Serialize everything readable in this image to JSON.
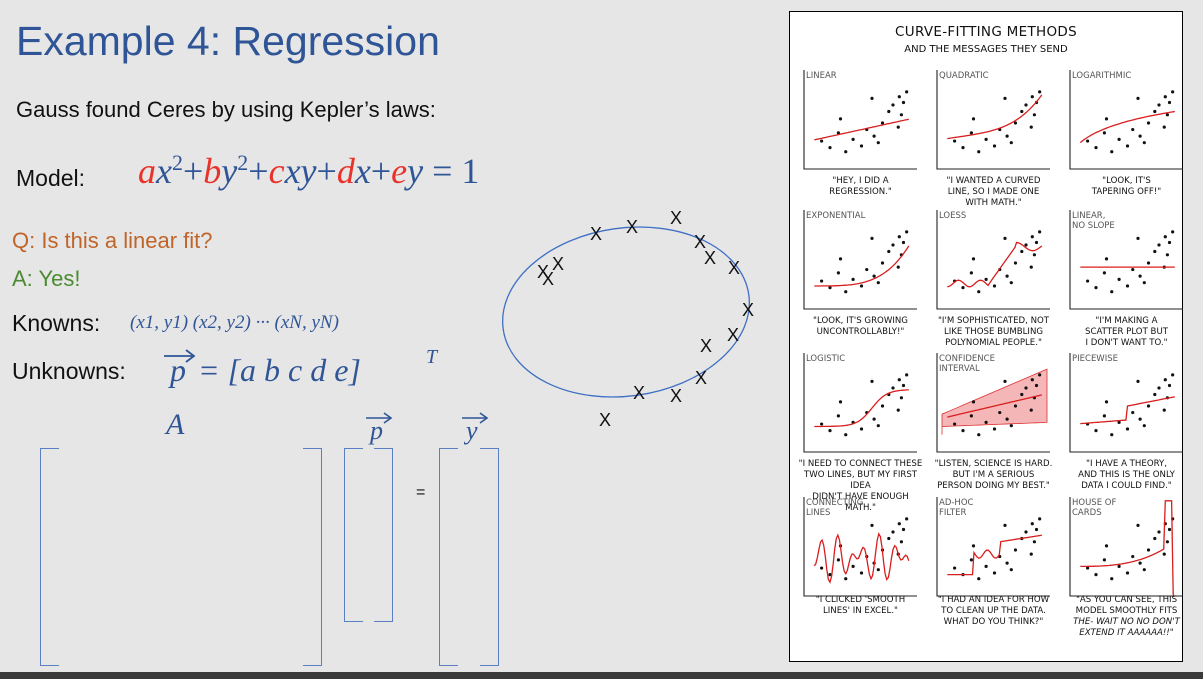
{
  "slide": {
    "title": "Example 4: Regression",
    "intro": "Gauss found Ceres by using Kepler’s laws:",
    "model_label": "Model:",
    "model_eq": {
      "a": "a",
      "x2": "x",
      "sup2": "2",
      "plus": "+",
      "b": "b",
      "y2": "y",
      "c": "c",
      "xy": "xy",
      "d": "d",
      "x": "x",
      "e": "e",
      "y": "y",
      "eq1": "= 1"
    },
    "question": "Q: Is this a linear fit?",
    "answer": "A: Yes!",
    "knowns_label": "Knowns:",
    "knowns_value": "(x1, y1)  (x2, y2)  ··· (xN, yN)",
    "unknowns_label": "Unknowns:",
    "unknowns_p": "p",
    "unknowns_value": "= [a  b  c  d  e]",
    "unknowns_sup": "T",
    "matrix_A": "A",
    "vec_p": "p",
    "vec_y": "y",
    "equals": "=",
    "x_marker": "X",
    "colors": {
      "title": "#2f5597",
      "accent_red": "#e8322a",
      "question": "#c0652a",
      "answer": "#4b8b31",
      "ellipse": "#3f6fc4"
    }
  },
  "comic": {
    "title": "CURVE-FITTING METHODS",
    "subtitle": "AND THE MESSAGES THEY SEND",
    "panels": [
      {
        "label": "LINEAR",
        "caption": [
          "\"HEY, I DID A",
          "REGRESSION.\""
        ]
      },
      {
        "label": "QUADRATIC",
        "caption": [
          "\"I WANTED A CURVED",
          "LINE, SO I MADE ONE",
          "WITH MATH.\""
        ]
      },
      {
        "label": "LOGARITHMIC",
        "caption": [
          "\"LOOK, IT'S",
          "TAPERING OFF!\""
        ]
      },
      {
        "label": "EXPONENTIAL",
        "caption": [
          "\"LOOK, IT'S GROWING",
          "UNCONTROLLABLY!\""
        ]
      },
      {
        "label": "LOESS",
        "caption": [
          "\"I'M SOPHISTICATED, NOT",
          "LIKE THOSE BUMBLING",
          "POLYNOMIAL PEOPLE.\""
        ]
      },
      {
        "label": "LINEAR,\nNO SLOPE",
        "caption": [
          "\"I'M MAKING A",
          "SCATTER PLOT BUT",
          "I DON'T WANT TO.\""
        ]
      },
      {
        "label": "LOGISTIC",
        "caption": [
          "\"I NEED TO CONNECT THESE",
          "TWO LINES, BUT MY FIRST IDEA",
          "DIDN'T HAVE ENOUGH MATH.\""
        ]
      },
      {
        "label": "CONFIDENCE\nINTERVAL",
        "caption": [
          "\"LISTEN, SCIENCE IS HARD.",
          "BUT I'M A SERIOUS",
          "PERSON DOING MY BEST.\""
        ]
      },
      {
        "label": "PIECEWISE",
        "caption": [
          "\"I HAVE A THEORY,",
          "AND THIS IS THE ONLY",
          "DATA I COULD FIND.\""
        ]
      },
      {
        "label": "CONNECTING\nLINES",
        "caption": [
          "\"I CLICKED 'SMOOTH",
          "LINES' IN EXCEL.\""
        ]
      },
      {
        "label": "AD-HOC\nFILTER",
        "caption": [
          "\"I HAD AN IDEA FOR HOW",
          "TO CLEAN UP THE DATA.",
          "WHAT DO YOU THINK?\""
        ]
      },
      {
        "label": "HOUSE OF\nCARDS",
        "caption": [
          "\"AS YOU CAN SEE, THIS",
          "MODEL SMOOTHLY FITS",
          "THE- WAIT NO NO DON'T",
          "EXTEND IT AAAAAA!!\""
        ]
      }
    ]
  }
}
